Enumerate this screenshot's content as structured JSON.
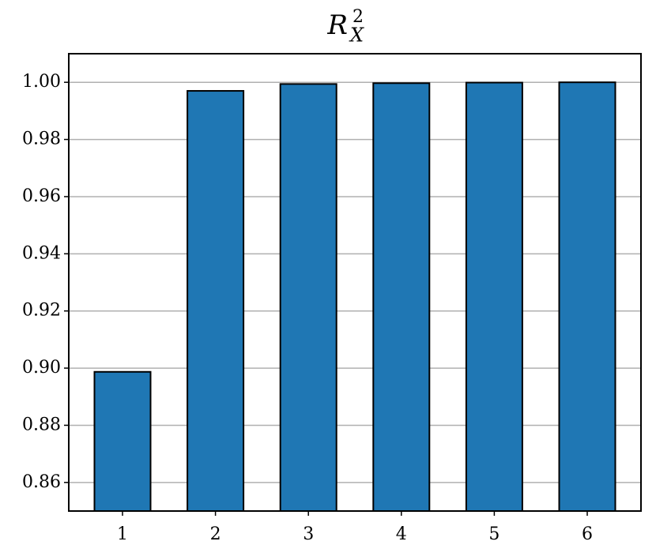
{
  "chart_data": {
    "type": "bar",
    "title": "R",
    "title_superscript": "2",
    "title_subscript": "X",
    "categories": [
      "1",
      "2",
      "3",
      "4",
      "5",
      "6"
    ],
    "values": [
      0.8987,
      0.997,
      0.9994,
      0.9997,
      0.9999,
      1.0
    ],
    "color": "#1f77b4",
    "ylim": [
      0.85,
      1.01
    ],
    "yticks": [
      {
        "value": 0.86,
        "label": "0.86"
      },
      {
        "value": 0.88,
        "label": "0.88"
      },
      {
        "value": 0.9,
        "label": "0.90"
      },
      {
        "value": 0.92,
        "label": "0.92"
      },
      {
        "value": 0.94,
        "label": "0.94"
      },
      {
        "value": 0.96,
        "label": "0.96"
      },
      {
        "value": 0.98,
        "label": "0.98"
      },
      {
        "value": 1.0,
        "label": "1.00"
      }
    ],
    "grid": true
  }
}
